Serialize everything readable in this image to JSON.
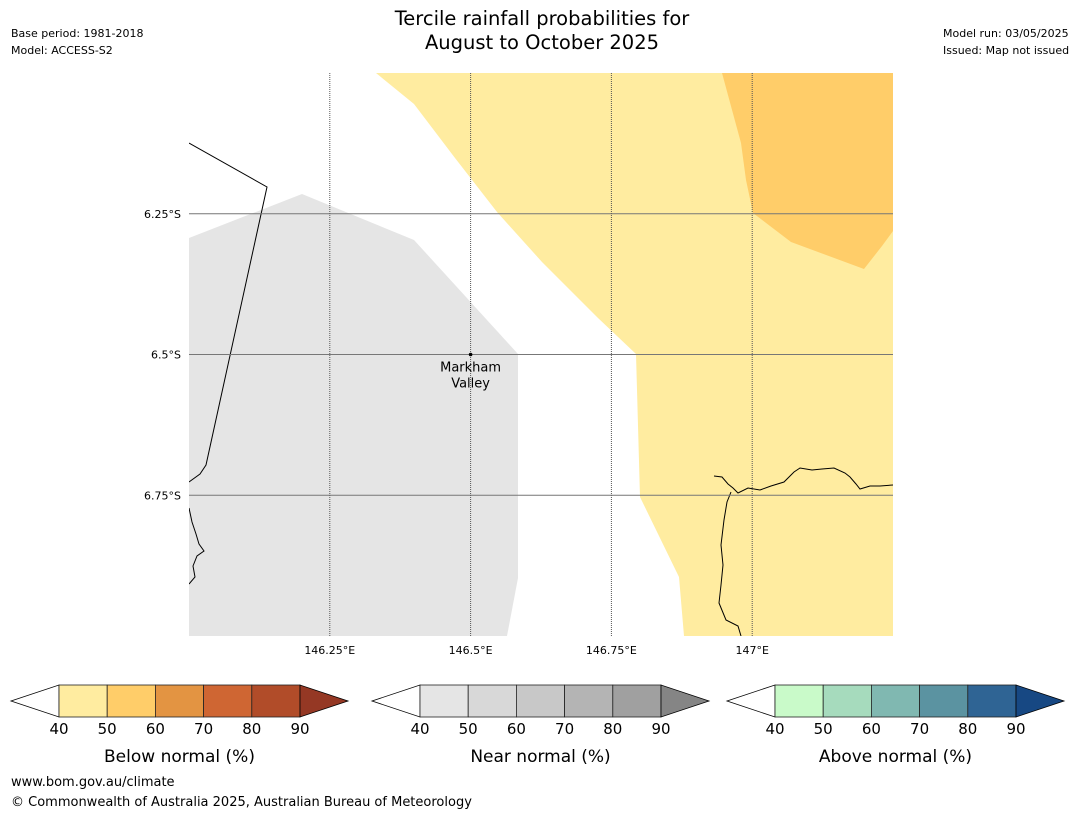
{
  "header": {
    "base_period": "Base period: 1981-2018",
    "model": "Model: ACCESS-S2",
    "title_line1": "Tercile rainfall probabilities for",
    "title_line2": "August to October 2025",
    "model_run": "Model run: 03/05/2025",
    "issued": "Issued: Map not issued"
  },
  "map": {
    "extent": {
      "lon_min": 146.0,
      "lon_max": 147.25,
      "lat_min": -7.0,
      "lat_max": -6.0
    },
    "lat_ticks": [
      {
        "value": -6.25,
        "label": "6.25°S"
      },
      {
        "value": -6.5,
        "label": "6.5°S"
      },
      {
        "value": -6.75,
        "label": "6.75°S"
      }
    ],
    "lon_ticks": [
      {
        "value": 146.25,
        "label": "146.25°E"
      },
      {
        "value": 146.5,
        "label": "146.5°E"
      },
      {
        "value": 146.75,
        "label": "146.75°E"
      },
      {
        "value": 147.0,
        "label": "147°E"
      }
    ],
    "location": {
      "label_line1": "Markham",
      "label_line2": "Valley",
      "lon": 146.5,
      "lat": -6.5
    },
    "regions": [
      {
        "category": "near-normal-40-50",
        "color": "#e5e5e5"
      },
      {
        "category": "below-normal-40-50",
        "color": "#ffeca0"
      },
      {
        "category": "below-normal-50-60",
        "color": "#ffcd69"
      }
    ]
  },
  "legends": [
    {
      "label": "Below normal (%)",
      "ticks": [
        "40",
        "50",
        "60",
        "70",
        "80",
        "90"
      ],
      "colors": [
        "#ffeca0",
        "#ffcd69",
        "#e39442",
        "#cf6633",
        "#b14c29"
      ],
      "over_color": "#953824"
    },
    {
      "label": "Near normal (%)",
      "ticks": [
        "40",
        "50",
        "60",
        "70",
        "80",
        "90"
      ],
      "colors": [
        "#e5e5e5",
        "#d8d8d8",
        "#c8c8c8",
        "#b4b4b4",
        "#a0a0a0"
      ],
      "over_color": "#858585"
    },
    {
      "label": "Above normal (%)",
      "ticks": [
        "40",
        "50",
        "60",
        "70",
        "80",
        "90"
      ],
      "colors": [
        "#c9fac9",
        "#a6dbbd",
        "#80b8b1",
        "#5b93a1",
        "#2f6494"
      ],
      "over_color": "#174883"
    }
  ],
  "footer": {
    "website": "www.bom.gov.au/climate",
    "copyright": "© Commonwealth of Australia 2025, Australian Bureau of Meteorology"
  }
}
